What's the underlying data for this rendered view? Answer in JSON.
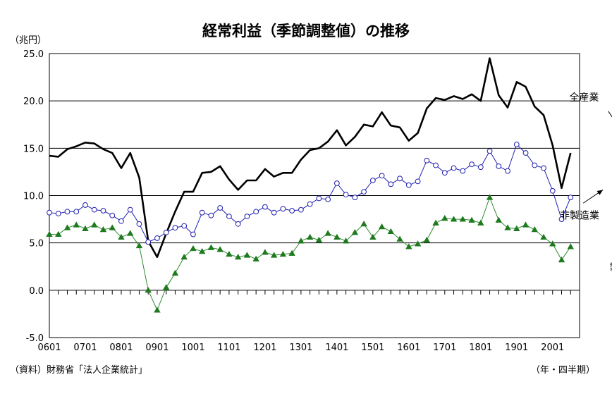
{
  "chart_data": {
    "type": "line",
    "title": "経常利益（季節調整値）の推移",
    "ylabel": "（兆円）",
    "xlabel": "（年・四半期）",
    "source": "（資料）財務省「法人企業統計」",
    "ylim": [
      -5,
      25
    ],
    "yticks": [
      "25.0",
      "20.0",
      "15.0",
      "10.0",
      "5.0",
      "0.0",
      "-5.0"
    ],
    "ytick_values": [
      25,
      20,
      15,
      10,
      5,
      0,
      -5
    ],
    "x_tick_labels": [
      "0601",
      "0701",
      "0801",
      "0901",
      "1001",
      "1101",
      "1201",
      "1301",
      "1401",
      "1501",
      "1601",
      "1701",
      "1801",
      "1901",
      "2001"
    ],
    "x_tick_index": [
      0,
      4,
      8,
      12,
      16,
      20,
      24,
      28,
      32,
      36,
      40,
      44,
      48,
      52,
      56
    ],
    "grid": "horizontal",
    "colors": {
      "all": "#000000",
      "nonmfg": "#1f1fb0",
      "mfg": "#1e7a1e",
      "mfg_line": "#2e8b2e"
    },
    "series": [
      {
        "name": "全産業",
        "key": "all",
        "marker": "none",
        "label_pos": [
          59.5,
          20.4
        ],
        "arrow": [
          [
            62.2,
            18.9
          ],
          [
            64.5,
            15.7
          ]
        ],
        "values": [
          14.2,
          14.1,
          14.9,
          15.2,
          15.6,
          15.5,
          14.9,
          14.5,
          12.9,
          14.5,
          11.9,
          5.2,
          3.5,
          6.0,
          8.3,
          10.4,
          10.4,
          12.4,
          12.5,
          13.1,
          11.7,
          10.6,
          11.6,
          11.6,
          12.8,
          12.0,
          12.4,
          12.4,
          13.8,
          14.8,
          15.0,
          15.7,
          16.9,
          15.3,
          16.2,
          17.5,
          17.3,
          18.8,
          17.4,
          17.2,
          15.8,
          16.6,
          19.2,
          20.3,
          20.1,
          20.5,
          20.2,
          20.7,
          20.0,
          24.5,
          20.6,
          19.3,
          22.0,
          21.5,
          19.4,
          18.5,
          15.3,
          10.8,
          14.5
        ]
      },
      {
        "name": "非製造業",
        "key": "nonmfg",
        "marker": "circle",
        "label_pos": [
          59.0,
          7.9
        ],
        "arrow": [
          [
            59.4,
            9.2
          ],
          [
            61.6,
            10.6
          ]
        ],
        "values": [
          8.2,
          8.1,
          8.3,
          8.3,
          9.0,
          8.5,
          8.4,
          7.9,
          7.3,
          8.5,
          7.0,
          5.1,
          5.5,
          6.1,
          6.6,
          6.8,
          5.9,
          8.2,
          7.9,
          8.7,
          7.8,
          7.0,
          7.8,
          8.3,
          8.8,
          8.2,
          8.6,
          8.4,
          8.5,
          9.1,
          9.7,
          9.6,
          11.3,
          10.1,
          9.8,
          10.4,
          11.6,
          12.1,
          11.2,
          11.8,
          11.1,
          11.5,
          13.7,
          13.2,
          12.4,
          12.9,
          12.6,
          13.3,
          13.0,
          14.7,
          13.1,
          12.6,
          15.4,
          14.5,
          13.2,
          12.9,
          10.5,
          7.5,
          9.8
        ]
      },
      {
        "name": "製造業",
        "key": "mfg",
        "marker": "triangle",
        "label_pos": [
          64.0,
          2.4
        ],
        "arrow": [
          [
            66.0,
            4.2
          ],
          [
            67.9,
            6.4
          ]
        ],
        "values": [
          5.9,
          5.9,
          6.6,
          6.9,
          6.5,
          6.9,
          6.4,
          6.6,
          5.6,
          6.0,
          4.7,
          0.0,
          -2.1,
          0.3,
          1.8,
          3.5,
          4.4,
          4.1,
          4.5,
          4.3,
          3.8,
          3.5,
          3.7,
          3.3,
          4.0,
          3.7,
          3.8,
          3.9,
          5.2,
          5.6,
          5.3,
          6.0,
          5.6,
          5.2,
          6.1,
          7.0,
          5.6,
          6.7,
          6.2,
          5.4,
          4.6,
          4.9,
          5.3,
          7.1,
          7.6,
          7.5,
          7.5,
          7.4,
          7.1,
          9.8,
          7.4,
          6.6,
          6.5,
          6.9,
          6.4,
          5.6,
          4.9,
          3.2,
          4.6
        ]
      }
    ]
  }
}
